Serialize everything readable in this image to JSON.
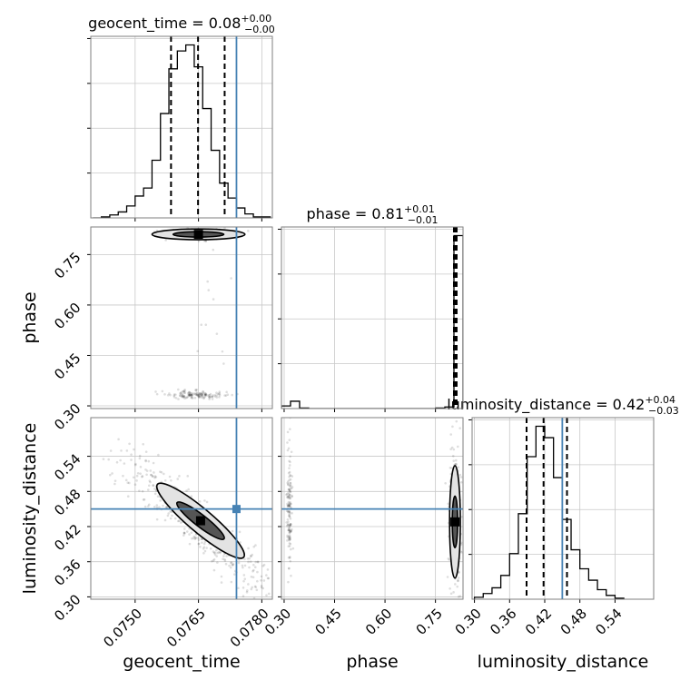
{
  "chart_data": {
    "type": "scatter",
    "chart_kind": "corner plot",
    "parameters": [
      "geocent_time",
      "phase",
      "luminosity_distance"
    ],
    "axis_labels": {
      "geocent_time": "geocent_time",
      "phase": "phase",
      "luminosity_distance": "luminosity_distance"
    },
    "titles": {
      "geocent_time": {
        "main": "geocent_time = 0.08",
        "plus": "+0.00",
        "minus": "−0.00"
      },
      "phase": {
        "main": "phase = 0.81",
        "plus": "+0.01",
        "minus": "−0.01"
      },
      "luminosity_distance": {
        "main": "luminosity_distance = 0.42",
        "plus": "+0.04",
        "minus": "−0.03"
      }
    },
    "ranges": {
      "geocent_time": [
        0.07395,
        0.07825
      ],
      "phase": [
        0.292,
        0.832
      ],
      "luminosity_distance": [
        0.296,
        0.606
      ]
    },
    "ticks": {
      "geocent_time": [
        {
          "value": 0.075,
          "label": "0.0750"
        },
        {
          "value": 0.0765,
          "label": "0.0765"
        },
        {
          "value": 0.078,
          "label": "0.0780"
        }
      ],
      "phase": [
        {
          "value": 0.3,
          "label": "0.30"
        },
        {
          "value": 0.45,
          "label": "0.45"
        },
        {
          "value": 0.6,
          "label": "0.60"
        },
        {
          "value": 0.75,
          "label": "0.75"
        }
      ],
      "luminosity_distance": [
        {
          "value": 0.3,
          "label": "0.30"
        },
        {
          "value": 0.36,
          "label": "0.36"
        },
        {
          "value": 0.42,
          "label": "0.42"
        },
        {
          "value": 0.48,
          "label": "0.48"
        },
        {
          "value": 0.54,
          "label": "0.54"
        }
      ]
    },
    "truths": {
      "geocent_time": 0.0774,
      "luminosity_distance": 0.45
    },
    "quantiles": {
      "geocent_time": [
        0.07585,
        0.07649,
        0.07712
      ],
      "phase": [
        0.805,
        0.809,
        0.813
      ],
      "luminosity_distance": [
        0.389,
        0.418,
        0.458
      ]
    },
    "histograms": {
      "geocent_time": {
        "edges": [
          0.074,
          0.0742,
          0.0744,
          0.0746,
          0.0748,
          0.075,
          0.0752,
          0.0754,
          0.0756,
          0.0758,
          0.076,
          0.0762,
          0.0764,
          0.0766,
          0.0768,
          0.077,
          0.0772,
          0.0774,
          0.0776,
          0.0778,
          0.078,
          0.0782
        ],
        "counts": [
          0,
          1,
          3,
          6,
          12,
          22,
          30,
          58,
          105,
          150,
          168,
          174,
          152,
          110,
          68,
          35,
          20,
          10,
          4,
          1,
          1
        ]
      },
      "phase": {
        "edges": [
          0.292,
          0.319,
          0.346,
          0.373,
          0.4,
          0.427,
          0.454,
          0.481,
          0.508,
          0.535,
          0.562,
          0.589,
          0.616,
          0.643,
          0.67,
          0.697,
          0.724,
          0.751,
          0.778,
          0.805,
          0.832
        ],
        "counts": [
          5,
          14,
          1,
          0,
          0,
          0,
          0,
          0,
          0,
          0,
          0,
          0,
          0,
          0,
          0,
          0,
          0,
          1,
          3,
          330
        ]
      },
      "luminosity_distance": {
        "edges": [
          0.3,
          0.315,
          0.33,
          0.345,
          0.36,
          0.375,
          0.39,
          0.405,
          0.42,
          0.435,
          0.45,
          0.465,
          0.48,
          0.495,
          0.51,
          0.525,
          0.54,
          0.555
        ],
        "counts": [
          2,
          6,
          12,
          25,
          48,
          90,
          150,
          182,
          170,
          128,
          84,
          52,
          32,
          20,
          10,
          4,
          1
        ]
      }
    },
    "sample_clusters": [
      {
        "pair": [
          "geocent_time",
          "phase"
        ],
        "center": [
          0.0765,
          0.81
        ],
        "sd": [
          0.0004,
          0.008
        ],
        "corr": 0,
        "n": 240
      },
      {
        "pair": [
          "geocent_time",
          "phase"
        ],
        "center": [
          0.0764,
          0.332
        ],
        "sd": [
          0.00035,
          0.006
        ],
        "corr": 0,
        "n": 140
      },
      {
        "pair": [
          "geocent_time",
          "phase"
        ],
        "center": [
          0.0768,
          0.55
        ],
        "sd": [
          0.0003,
          0.18
        ],
        "corr": 0,
        "n": 14
      },
      {
        "pair": [
          "geocent_time",
          "luminosity_distance"
        ],
        "center": [
          0.07645,
          0.425
        ],
        "sd": [
          0.0009,
          0.06
        ],
        "corr": -0.93,
        "n": 520
      },
      {
        "pair": [
          "phase",
          "luminosity_distance"
        ],
        "center": [
          0.808,
          0.43
        ],
        "sd": [
          0.009,
          0.06
        ],
        "corr": 0,
        "n": 260
      },
      {
        "pair": [
          "phase",
          "luminosity_distance"
        ],
        "center": [
          0.316,
          0.45
        ],
        "sd": [
          0.004,
          0.055
        ],
        "corr": 0,
        "n": 140
      }
    ],
    "contours": [
      {
        "pair": [
          "geocent_time",
          "phase"
        ],
        "center": [
          0.0765,
          0.81
        ],
        "levels": [
          {
            "sd": [
              0.0003,
              0.004
            ],
            "fill": "#555555"
          },
          {
            "sd": [
              0.00055,
              0.008
            ],
            "fill": "#e3e3e3"
          }
        ]
      },
      {
        "pair": [
          "phase",
          "luminosity_distance"
        ],
        "center": [
          0.808,
          0.428
        ],
        "levels": [
          {
            "sd": [
              0.004,
              0.022
            ],
            "fill": "#555555"
          },
          {
            "sd": [
              0.008,
              0.048
            ],
            "fill": "#e3e3e3"
          }
        ]
      },
      {
        "pair": [
          "geocent_time",
          "luminosity_distance"
        ],
        "center": [
          0.07655,
          0.43
        ],
        "corr": -0.93,
        "levels": [
          {
            "sd": [
              0.0003,
              0.018
            ],
            "fill": "#555555"
          },
          {
            "sd": [
              0.00055,
              0.036
            ],
            "fill": "#e3e3e3"
          }
        ]
      }
    ],
    "colors": {
      "truth": "#4682b4",
      "hist": "#000000",
      "grid": "#c8c8c8"
    },
    "grid": true,
    "legend": "none"
  }
}
